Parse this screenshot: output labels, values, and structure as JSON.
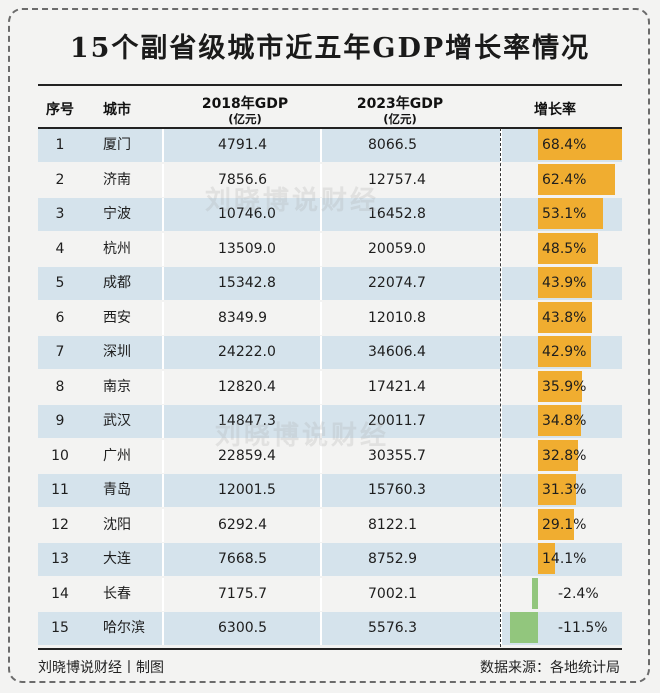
{
  "title": "15个副省级城市近五年GDP增长率情况",
  "headers": {
    "rank": "序号",
    "city": "城市",
    "gdp2018": "2018年GDP",
    "gdp2018_unit": "(亿元)",
    "gdp2023": "2023年GDP",
    "gdp2023_unit": "(亿元)",
    "growth": "增长率"
  },
  "watermark": "刘晓博说财经",
  "footer": {
    "left": "刘晓博说财经丨制图",
    "right": "数据来源：各地统计局"
  },
  "colors": {
    "positive_bar": "#f0ad30",
    "negative_bar": "#92c67d",
    "row_band": "#d5e3ec"
  },
  "chart_data": {
    "type": "table",
    "columns": [
      "序号",
      "城市",
      "2018年GDP",
      "2023年GDP",
      "增长率"
    ],
    "rows": [
      {
        "rank": "1",
        "city": "厦门",
        "gdp2018": "4791.4",
        "gdp2023": "8066.5",
        "growth": 68.4,
        "growth_label": "68.4%"
      },
      {
        "rank": "2",
        "city": "济南",
        "gdp2018": "7856.6",
        "gdp2023": "12757.4",
        "growth": 62.4,
        "growth_label": "62.4%"
      },
      {
        "rank": "3",
        "city": "宁波",
        "gdp2018": "10746.0",
        "gdp2023": "16452.8",
        "growth": 53.1,
        "growth_label": "53.1%"
      },
      {
        "rank": "4",
        "city": "杭州",
        "gdp2018": "13509.0",
        "gdp2023": "20059.0",
        "growth": 48.5,
        "growth_label": "48.5%"
      },
      {
        "rank": "5",
        "city": "成都",
        "gdp2018": "15342.8",
        "gdp2023": "22074.7",
        "growth": 43.9,
        "growth_label": "43.9%"
      },
      {
        "rank": "6",
        "city": "西安",
        "gdp2018": "8349.9",
        "gdp2023": "12010.8",
        "growth": 43.8,
        "growth_label": "43.8%"
      },
      {
        "rank": "7",
        "city": "深圳",
        "gdp2018": "24222.0",
        "gdp2023": "34606.4",
        "growth": 42.9,
        "growth_label": "42.9%"
      },
      {
        "rank": "8",
        "city": "南京",
        "gdp2018": "12820.4",
        "gdp2023": "17421.4",
        "growth": 35.9,
        "growth_label": "35.9%"
      },
      {
        "rank": "9",
        "city": "武汉",
        "gdp2018": "14847.3",
        "gdp2023": "20011.7",
        "growth": 34.8,
        "growth_label": "34.8%"
      },
      {
        "rank": "10",
        "city": "广州",
        "gdp2018": "22859.4",
        "gdp2023": "30355.7",
        "growth": 32.8,
        "growth_label": "32.8%"
      },
      {
        "rank": "11",
        "city": "青岛",
        "gdp2018": "12001.5",
        "gdp2023": "15760.3",
        "growth": 31.3,
        "growth_label": "31.3%"
      },
      {
        "rank": "12",
        "city": "沈阳",
        "gdp2018": "6292.4",
        "gdp2023": "8122.1",
        "growth": 29.1,
        "growth_label": "29.1%"
      },
      {
        "rank": "13",
        "city": "大连",
        "gdp2018": "7668.5",
        "gdp2023": "8752.9",
        "growth": 14.1,
        "growth_label": "14.1%"
      },
      {
        "rank": "14",
        "city": "长春",
        "gdp2018": "7175.7",
        "gdp2023": "7002.1",
        "growth": -2.4,
        "growth_label": "-2.4%"
      },
      {
        "rank": "15",
        "city": "哈尔滨",
        "gdp2018": "6300.5",
        "gdp2023": "5576.3",
        "growth": -11.5,
        "growth_label": "-11.5%"
      }
    ],
    "growth_range": [
      -15,
      68.4
    ]
  }
}
